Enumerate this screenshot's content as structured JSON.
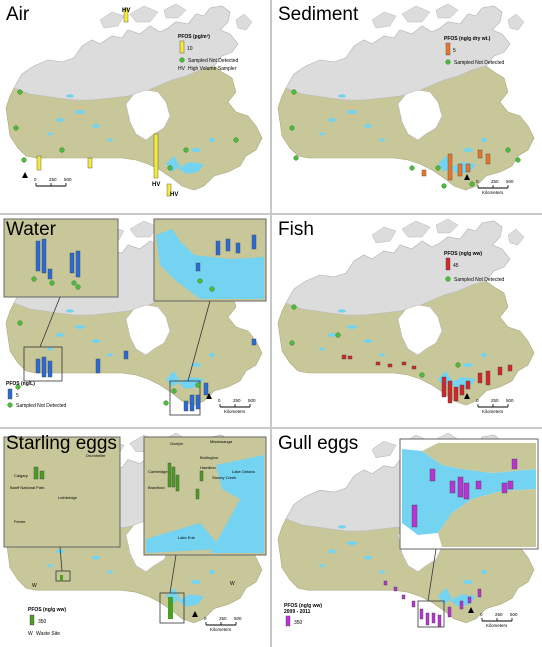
{
  "colors": {
    "land": "#c8c79a",
    "land_outline": "#a9a880",
    "north": "#dcdcdc",
    "water": "#73d3f0",
    "air": "#f3ea3c",
    "sediment": "#e8762b",
    "water_bar": "#2a6bd6",
    "fish": "#d2262b",
    "starling": "#4c9e23",
    "gull": "#b933d6",
    "not_detected": "#4dbb3d"
  },
  "panels": [
    {
      "id": "air",
      "title": "Air",
      "legend": {
        "title": "PFOS",
        "unit": "(pg/m³)",
        "value": "10",
        "not_detected": "Sampled Not Detected",
        "hv_code": "HV",
        "hv_label": "High Volume Sampler"
      },
      "markers": [
        "HV",
        "HV",
        "HV"
      ],
      "scale": [
        "0",
        "250",
        "500"
      ]
    },
    {
      "id": "sediment",
      "title": "Sediment",
      "legend": {
        "title": "PFOS",
        "unit": "(ng/g dry wt.)",
        "value": "5",
        "not_detected": "Sampled Not Detected"
      },
      "scale": [
        "0",
        "250",
        "500",
        "Kilometers"
      ]
    },
    {
      "id": "water",
      "title": "Water",
      "legend": {
        "title": "PFOS",
        "unit": "(ng/L)",
        "value": "5",
        "not_detected": "Sampled Not Detected"
      },
      "scale": [
        "0",
        "250",
        "500",
        "Kilometers"
      ]
    },
    {
      "id": "fish",
      "title": "Fish",
      "legend": {
        "title": "PFOS",
        "unit": "(ng/g ww)",
        "value": "45",
        "not_detected": "Sampled Not Detected"
      },
      "scale": [
        "0",
        "250",
        "500",
        "Kilometers"
      ]
    },
    {
      "id": "starling",
      "title": "Starling eggs",
      "legend": {
        "title": "PFOS",
        "unit": "(ng/g ww)",
        "value": "350",
        "waste_code": "W",
        "waste_label": "Waste Site"
      },
      "inset_left_places": [
        "Calgary",
        "Banff National Park",
        "Lethbridge",
        "Drumheller",
        "Fernie"
      ],
      "inset_right_places": [
        "Guelph",
        "Mississauga",
        "Cambridge",
        "Burlington",
        "Hamilton",
        "Stoney Creek",
        "Brantford",
        "Lake Ontario",
        "Lake Erie"
      ],
      "scale": [
        "0",
        "250",
        "500",
        "Kilometers"
      ]
    },
    {
      "id": "gull",
      "title": "Gull eggs",
      "legend": {
        "title": "PFOS",
        "unit": "(ng/g ww)",
        "period": "2009 - 2011",
        "value": "350"
      },
      "scale": [
        "0",
        "250",
        "500",
        "Kilometers"
      ]
    }
  ]
}
